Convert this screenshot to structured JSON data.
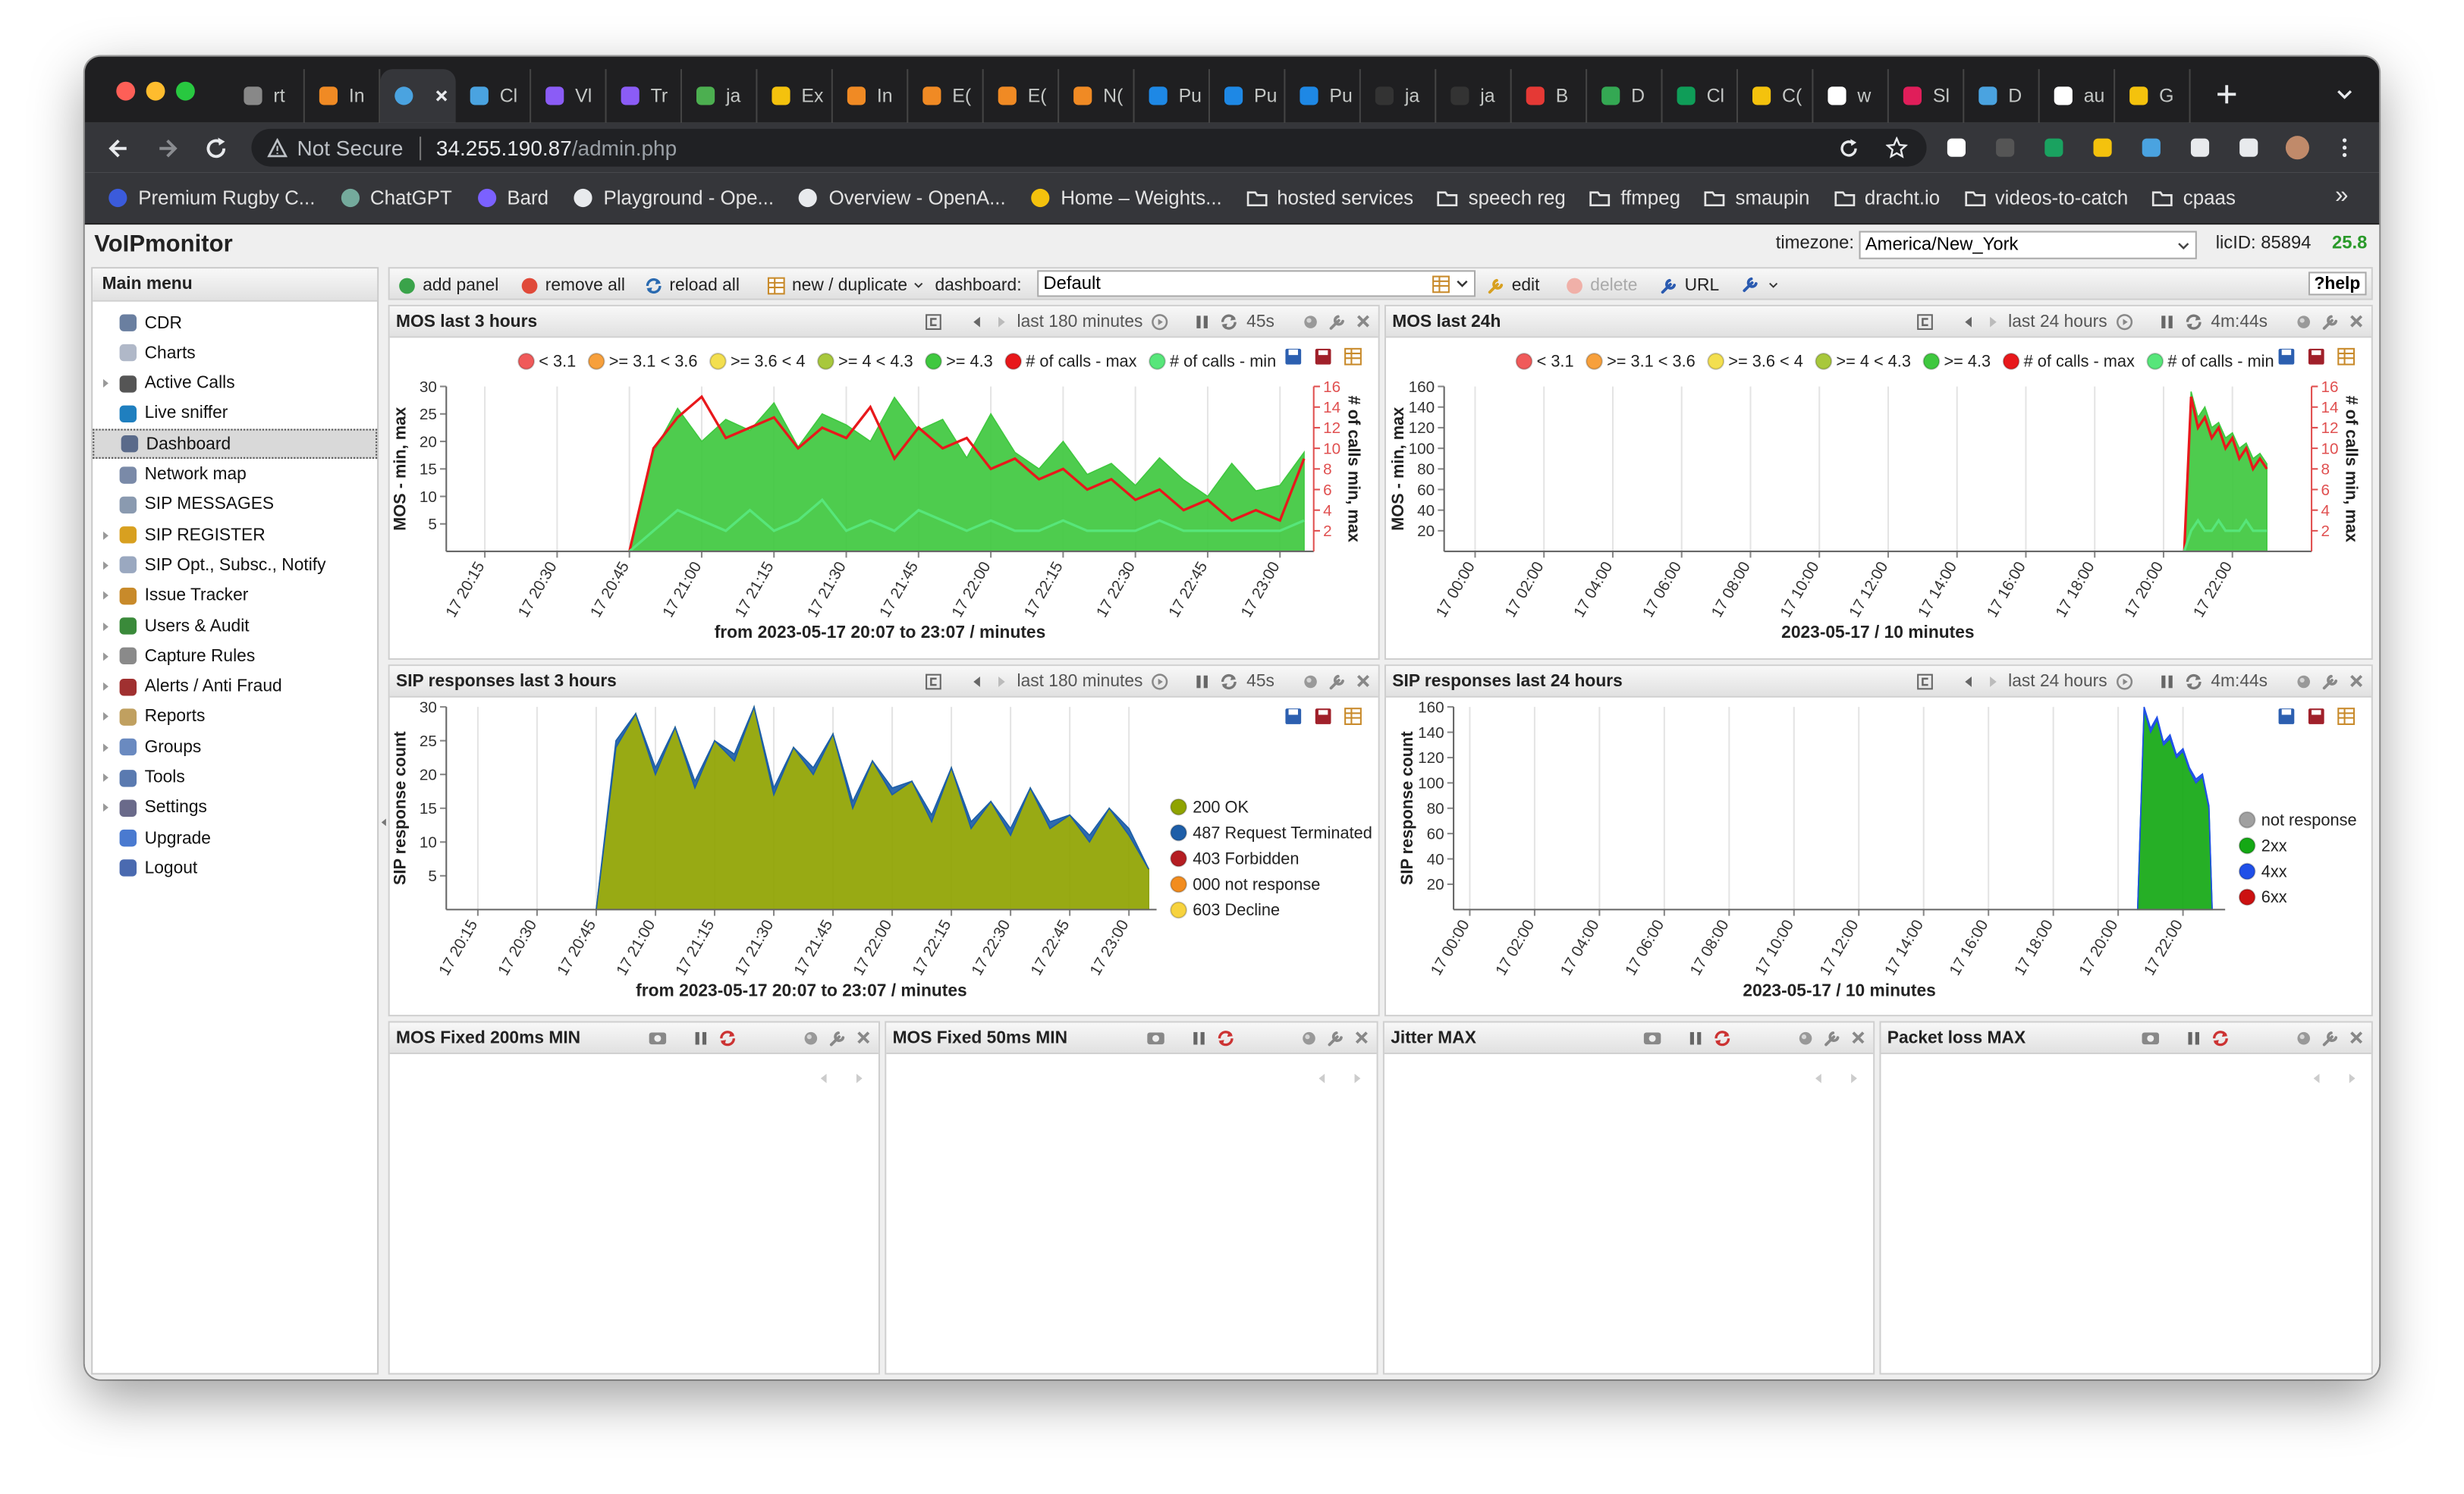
{
  "browser": {
    "tabs": [
      {
        "label": "rt"
      },
      {
        "label": "In"
      },
      {
        "active": true
      },
      {
        "label": "Cl"
      },
      {
        "label": "Vl"
      },
      {
        "label": "Tr"
      },
      {
        "label": "ja"
      },
      {
        "label": "Ex"
      },
      {
        "label": "In"
      },
      {
        "label": "E("
      },
      {
        "label": "E("
      },
      {
        "label": "N("
      },
      {
        "label": "Pu"
      },
      {
        "label": "Pu"
      },
      {
        "label": "Pu"
      },
      {
        "label": "ja"
      },
      {
        "label": "ja"
      },
      {
        "label": "B"
      },
      {
        "label": "D"
      },
      {
        "label": "Cl"
      },
      {
        "label": "C("
      },
      {
        "label": "w"
      },
      {
        "label": "Sl"
      },
      {
        "label": "D"
      },
      {
        "label": "au"
      },
      {
        "label": "G"
      }
    ],
    "security": "Not Secure",
    "url_host": "34.255.190.87",
    "url_path": "/admin.php",
    "bookmarks": [
      {
        "label": "Premium Rugby C..."
      },
      {
        "label": "ChatGPT"
      },
      {
        "label": "Bard"
      },
      {
        "label": "Playground - Ope..."
      },
      {
        "label": "Overview - OpenA..."
      },
      {
        "label": "Home – Weights..."
      },
      {
        "label": "hosted services",
        "folder": true
      },
      {
        "label": "speech reg",
        "folder": true
      },
      {
        "label": "ffmpeg",
        "folder": true
      },
      {
        "label": "smaupin",
        "folder": true
      },
      {
        "label": "dracht.io",
        "folder": true
      },
      {
        "label": "videos-to-catch",
        "folder": true
      },
      {
        "label": "cpaas",
        "folder": true
      }
    ],
    "more": "»"
  },
  "app": {
    "title": "VoIPmonitor",
    "timezone_label": "timezone:",
    "timezone": "America/New_York",
    "licid": "licID: 85894",
    "version": "25.8"
  },
  "menu": {
    "header": "Main menu",
    "items": [
      {
        "label": "CDR"
      },
      {
        "label": "Charts"
      },
      {
        "label": "Active Calls",
        "expandable": true
      },
      {
        "label": "Live sniffer"
      },
      {
        "label": "Dashboard",
        "selected": true
      },
      {
        "label": "Network map"
      },
      {
        "label": "SIP MESSAGES"
      },
      {
        "label": "SIP REGISTER",
        "expandable": true
      },
      {
        "label": "SIP Opt., Subsc., Notify",
        "expandable": true
      },
      {
        "label": "Issue Tracker",
        "expandable": true
      },
      {
        "label": "Users & Audit",
        "expandable": true
      },
      {
        "label": "Capture Rules",
        "expandable": true
      },
      {
        "label": "Alerts / Anti Fraud",
        "expandable": true
      },
      {
        "label": "Reports",
        "expandable": true
      },
      {
        "label": "Groups",
        "expandable": true
      },
      {
        "label": "Tools",
        "expandable": true
      },
      {
        "label": "Settings",
        "expandable": true
      },
      {
        "label": "Upgrade"
      },
      {
        "label": "Logout"
      }
    ]
  },
  "toolbar": {
    "add": "add panel",
    "remove": "remove all",
    "reload": "reload all",
    "new": "new / duplicate",
    "dashboard_label": "dashboard:",
    "dashboard": "Default",
    "edit": "edit",
    "delete": "delete",
    "url": "URL",
    "help": "?help"
  },
  "panels": [
    {
      "title": "MOS last 3 hours",
      "range": "last 180 minutes",
      "refresh": "45s",
      "chart_data": {
        "type": "area",
        "ylabel": "MOS - min, max",
        "y2label": "# of calls min, max",
        "xlabel": "from 2023-05-17 20:07 to 23:07 / minutes",
        "legend": "top",
        "grid": true,
        "y2color": "#e05050",
        "xlim": [
          1207,
          1387
        ],
        "ylim": [
          0,
          30
        ],
        "yticks": [
          5,
          10,
          15,
          20,
          25,
          30
        ],
        "y2lim": [
          0,
          16
        ],
        "y2ticks": [
          2,
          4,
          6,
          8,
          10,
          12,
          14,
          16
        ],
        "xticks": [
          {
            "value": 1215,
            "label": "17 20:15"
          },
          {
            "value": 1230,
            "label": "17 20:30"
          },
          {
            "value": 1245,
            "label": "17 20:45"
          },
          {
            "value": 1260,
            "label": "17 21:00"
          },
          {
            "value": 1275,
            "label": "17 21:15"
          },
          {
            "value": 1290,
            "label": "17 21:30"
          },
          {
            "value": 1305,
            "label": "17 21:45"
          },
          {
            "value": 1320,
            "label": "17 22:00"
          },
          {
            "value": 1335,
            "label": "17 22:15"
          },
          {
            "value": 1350,
            "label": "17 22:30"
          },
          {
            "value": 1365,
            "label": "17 22:45"
          },
          {
            "value": 1380,
            "label": "17 23:00"
          }
        ],
        "x": [
          1245,
          1250,
          1255,
          1260,
          1265,
          1270,
          1275,
          1280,
          1285,
          1290,
          1295,
          1300,
          1305,
          1310,
          1315,
          1320,
          1325,
          1330,
          1335,
          1340,
          1345,
          1350,
          1355,
          1360,
          1365,
          1370,
          1375,
          1380,
          1385
        ],
        "series": [
          {
            "name": "< 3.1",
            "color": "#f05a5a"
          },
          {
            "name": ">= 3.1 < 3.6",
            "color": "#f7a03c"
          },
          {
            "name": ">= 3.6 < 4",
            "color": "#f3df4f"
          },
          {
            "name": ">= 4 < 4.3",
            "color": "#a8c83c"
          },
          {
            "name": ">= 4.3",
            "color": "#3fc83f",
            "style": "area",
            "values": [
              0,
              18,
              26,
              20,
              24,
              22,
              27,
              19,
              25,
              23,
              20,
              28,
              22,
              24,
              17,
              25,
              18,
              15,
              20,
              14,
              16,
              12,
              17,
              13,
              10,
              16,
              11,
              12,
              18
            ]
          },
          {
            "name": "# of calls - max",
            "color": "#e8181b",
            "style": "line",
            "axis": "y2",
            "values": [
              0,
              10,
              13,
              15,
              11,
              12,
              13,
              10,
              12,
              11,
              14,
              9,
              12,
              10,
              11,
              8,
              9,
              7,
              8,
              6,
              7,
              5,
              6,
              4,
              5,
              3,
              4,
              3,
              9
            ]
          },
          {
            "name": "# of calls - min",
            "color": "#57e67a",
            "style": "line",
            "axis": "y2",
            "values": [
              0,
              2,
              4,
              3,
              2,
              4,
              2,
              3,
              5,
              2,
              3,
              2,
              4,
              3,
              2,
              3,
              2,
              2,
              3,
              2,
              2,
              2,
              3,
              2,
              2,
              2,
              2,
              2,
              3
            ]
          }
        ]
      }
    },
    {
      "title": "MOS last 24h",
      "range": "last 24 hours",
      "refresh": "4m:44s",
      "chart_data": {
        "type": "area",
        "ylabel": "MOS - min, max",
        "y2label": "# of calls min, max",
        "xlabel": "2023-05-17 / 10 minutes",
        "legend": "top",
        "grid": true,
        "y2color": "#e05050",
        "xlim": [
          -0.9,
          24.3
        ],
        "ylim": [
          0,
          160
        ],
        "yticks": [
          20,
          40,
          60,
          80,
          100,
          120,
          140,
          160
        ],
        "y2lim": [
          0,
          16
        ],
        "y2ticks": [
          2,
          4,
          6,
          8,
          10,
          12,
          14,
          16
        ],
        "xticks": [
          {
            "value": 0,
            "label": "17 00:00"
          },
          {
            "value": 2,
            "label": "17 02:00"
          },
          {
            "value": 4,
            "label": "17 04:00"
          },
          {
            "value": 6,
            "label": "17 06:00"
          },
          {
            "value": 8,
            "label": "17 08:00"
          },
          {
            "value": 10,
            "label": "17 10:00"
          },
          {
            "value": 12,
            "label": "17 12:00"
          },
          {
            "value": 14,
            "label": "17 14:00"
          },
          {
            "value": 16,
            "label": "17 16:00"
          },
          {
            "value": 18,
            "label": "17 18:00"
          },
          {
            "value": 20,
            "label": "17 20:00"
          },
          {
            "value": 22,
            "label": "17 22:00"
          }
        ],
        "x": [
          20.6,
          20.8,
          21.0,
          21.2,
          21.4,
          21.6,
          21.8,
          22.0,
          22.2,
          22.4,
          22.6,
          22.8,
          23.0
        ],
        "series": [
          {
            "name": "< 3.1",
            "color": "#f05a5a"
          },
          {
            "name": ">= 3.1 < 3.6",
            "color": "#f7a03c"
          },
          {
            "name": ">= 3.6 < 4",
            "color": "#f3df4f"
          },
          {
            "name": ">= 4 < 4.3",
            "color": "#a8c83c"
          },
          {
            "name": ">= 4.3",
            "color": "#3fc83f",
            "style": "area",
            "values": [
              0,
              155,
              130,
              140,
              120,
              125,
              110,
              115,
              100,
              105,
              90,
              95,
              85
            ]
          },
          {
            "name": "# of calls - max",
            "color": "#e8181b",
            "style": "line",
            "axis": "y2",
            "values": [
              0,
              15,
              12,
              13,
              11,
              12,
              10,
              11,
              9,
              10,
              8,
              9,
              8
            ]
          },
          {
            "name": "# of calls - min",
            "color": "#57e67a",
            "style": "line",
            "axis": "y2",
            "values": [
              0,
              2,
              3,
              2,
              2,
              3,
              2,
              2,
              2,
              3,
              2,
              2,
              2
            ]
          }
        ]
      }
    },
    {
      "title": "SIP responses last 3 hours",
      "range": "last 180 minutes",
      "refresh": "45s",
      "chart_data": {
        "type": "area",
        "ylabel": "SIP response count",
        "xlabel": "from 2023-05-17 20:07 to 23:07 / minutes",
        "legend": "right",
        "grid": true,
        "stacked": true,
        "xlim": [
          1207,
          1387
        ],
        "ylim": [
          0,
          30
        ],
        "yticks": [
          5,
          10,
          15,
          20,
          25,
          30
        ],
        "xticks": [
          {
            "value": 1215,
            "label": "17 20:15"
          },
          {
            "value": 1230,
            "label": "17 20:30"
          },
          {
            "value": 1245,
            "label": "17 20:45"
          },
          {
            "value": 1260,
            "label": "17 21:00"
          },
          {
            "value": 1275,
            "label": "17 21:15"
          },
          {
            "value": 1290,
            "label": "17 21:30"
          },
          {
            "value": 1305,
            "label": "17 21:45"
          },
          {
            "value": 1320,
            "label": "17 22:00"
          },
          {
            "value": 1335,
            "label": "17 22:15"
          },
          {
            "value": 1350,
            "label": "17 22:30"
          },
          {
            "value": 1365,
            "label": "17 22:45"
          },
          {
            "value": 1380,
            "label": "17 23:00"
          }
        ],
        "x": [
          1245,
          1250,
          1255,
          1260,
          1265,
          1270,
          1275,
          1280,
          1285,
          1290,
          1295,
          1300,
          1305,
          1310,
          1315,
          1320,
          1325,
          1330,
          1335,
          1340,
          1345,
          1350,
          1355,
          1360,
          1365,
          1370,
          1375,
          1380,
          1385
        ],
        "series": [
          {
            "name": "200 OK",
            "color": "#8fa300",
            "style": "area",
            "values": [
              0,
              24,
              29,
              20,
              27,
              18,
              25,
              22,
              30,
              17,
              24,
              20,
              26,
              15,
              22,
              17,
              19,
              13,
              21,
              12,
              16,
              11,
              18,
              12,
              14,
              10,
              15,
              11,
              6
            ]
          },
          {
            "name": "487 Request Terminated",
            "color": "#1d5ea8",
            "style": "area",
            "values": [
              0,
              1,
              0,
              1,
              0,
              1,
              0,
              1,
              0,
              1,
              0,
              1,
              0,
              1,
              0,
              1,
              0,
              1,
              0,
              1,
              0,
              1,
              0,
              1,
              0,
              1,
              0,
              1,
              0
            ]
          },
          {
            "name": "403 Forbidden",
            "color": "#b51d22"
          },
          {
            "name": "000 not response",
            "color": "#f28c1e"
          },
          {
            "name": "603 Decline",
            "color": "#f7d33e"
          }
        ]
      }
    },
    {
      "title": "SIP responses last 24 hours",
      "range": "last 24 hours",
      "refresh": "4m:44s",
      "chart_data": {
        "type": "area",
        "ylabel": "SIP response count",
        "xlabel": "2023-05-17 / 10 minutes",
        "legend": "right",
        "grid": true,
        "stacked": true,
        "xlim": [
          -0.5,
          23.3
        ],
        "ylim": [
          0,
          160
        ],
        "yticks": [
          20,
          40,
          60,
          80,
          100,
          120,
          140,
          160
        ],
        "xticks": [
          {
            "value": 0,
            "label": "17 00:00"
          },
          {
            "value": 2,
            "label": "17 02:00"
          },
          {
            "value": 4,
            "label": "17 04:00"
          },
          {
            "value": 6,
            "label": "17 06:00"
          },
          {
            "value": 8,
            "label": "17 08:00"
          },
          {
            "value": 10,
            "label": "17 10:00"
          },
          {
            "value": 12,
            "label": "17 12:00"
          },
          {
            "value": 14,
            "label": "17 14:00"
          },
          {
            "value": 16,
            "label": "17 16:00"
          },
          {
            "value": 18,
            "label": "17 18:00"
          },
          {
            "value": 20,
            "label": "17 20:00"
          },
          {
            "value": 22,
            "label": "17 22:00"
          }
        ],
        "x": [
          20.6,
          20.8,
          21.0,
          21.2,
          21.4,
          21.6,
          21.8,
          22.0,
          22.2,
          22.4,
          22.6,
          22.8,
          22.9
        ],
        "series": [
          {
            "name": "not response",
            "color": "#a0a0a0"
          },
          {
            "name": "2xx",
            "color": "#14a814",
            "style": "area",
            "values": [
              0,
              158,
              140,
              150,
              130,
              135,
              120,
              125,
              110,
              100,
              105,
              80,
              0
            ]
          },
          {
            "name": "4xx",
            "color": "#1f4fe8",
            "style": "area",
            "values": [
              0,
              2,
              3,
              2,
              2,
              3,
              2,
              2,
              2,
              3,
              2,
              2,
              0
            ]
          },
          {
            "name": "6xx",
            "color": "#cc1111"
          }
        ]
      }
    },
    {
      "title": "MOS Fixed 200ms MIN"
    },
    {
      "title": "MOS Fixed 50ms MIN"
    },
    {
      "title": "Jitter MAX"
    },
    {
      "title": "Packet loss MAX"
    }
  ]
}
